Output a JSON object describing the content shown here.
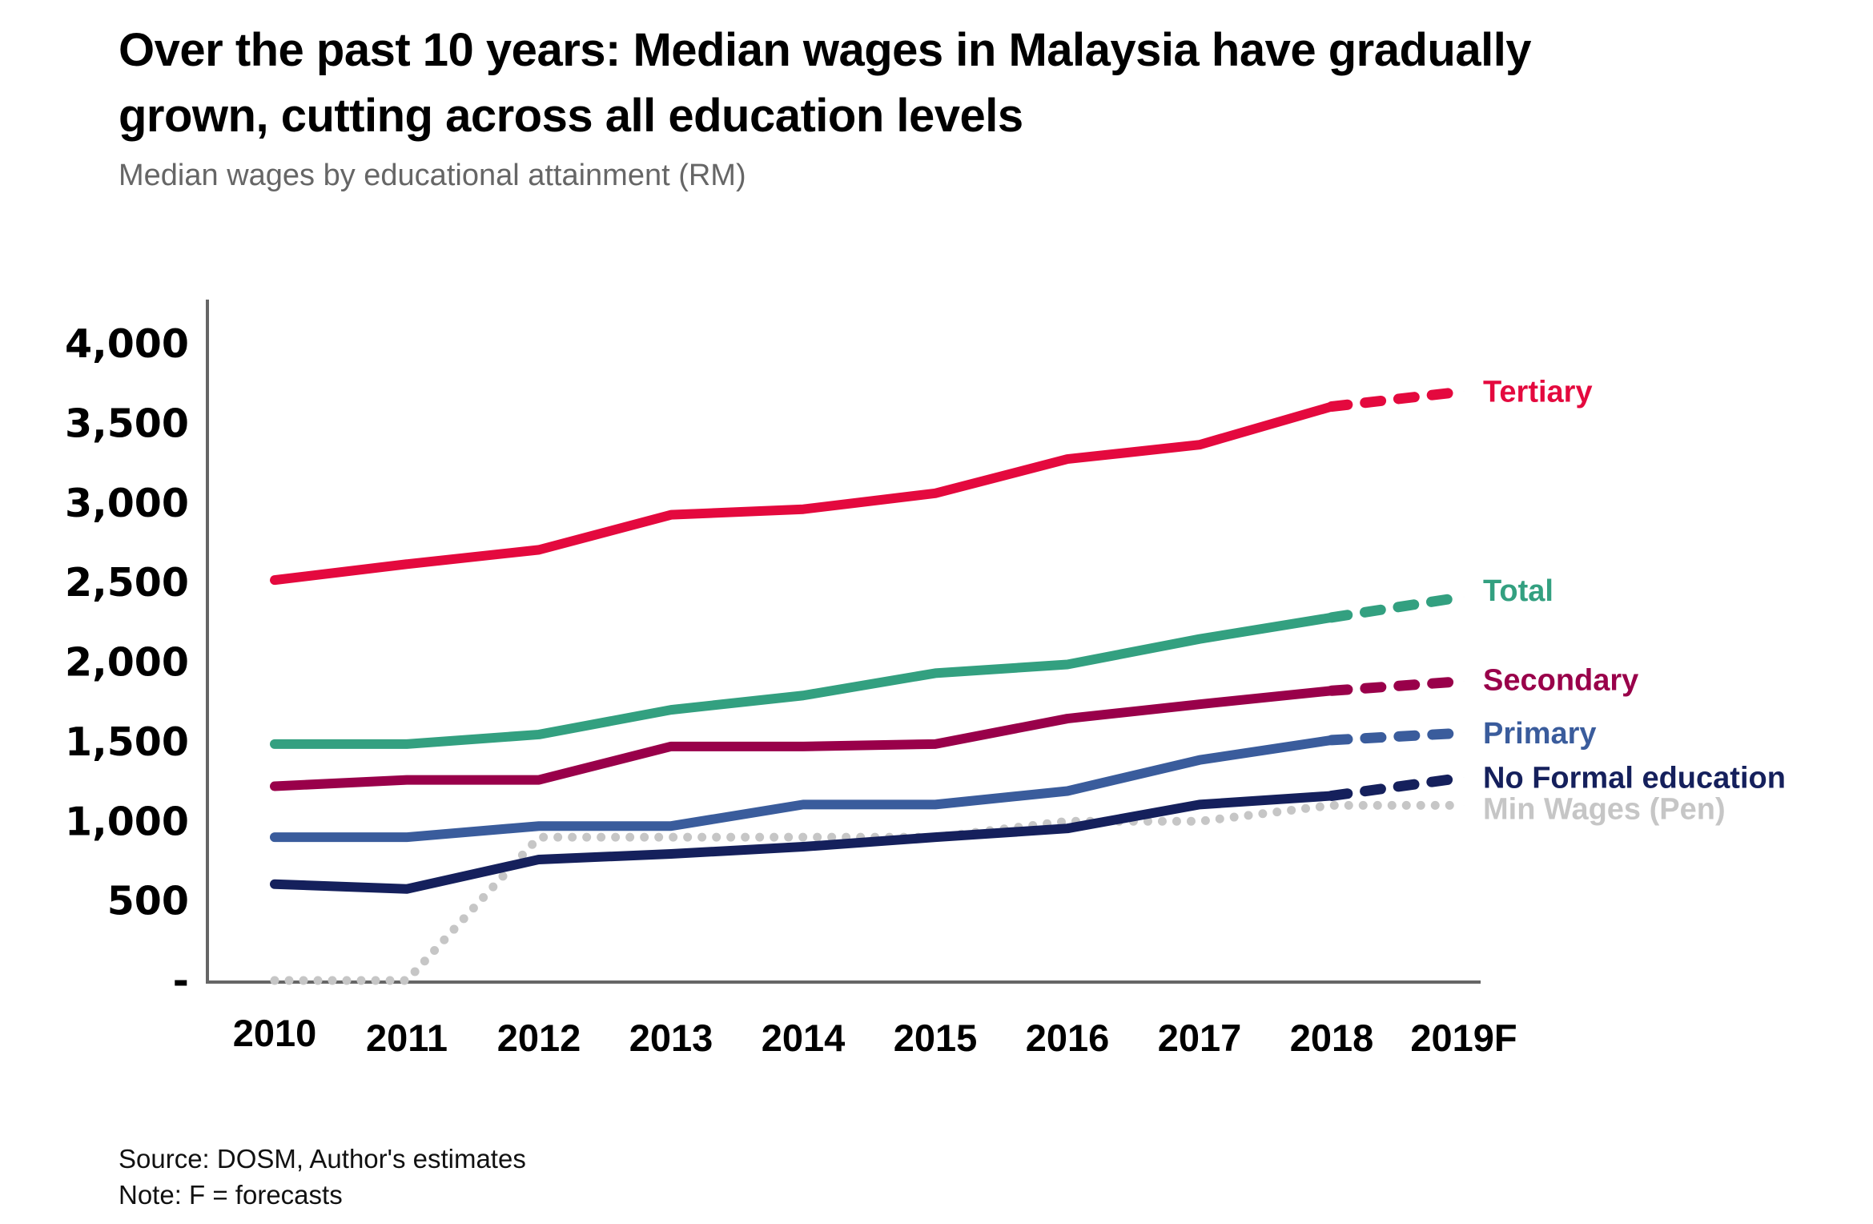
{
  "header": {
    "title_line1": "Over the past 10 years: Median wages in Malaysia have gradually",
    "title_line2": "grown, cutting across all education levels",
    "subtitle": "Median wages by educational attainment (RM)"
  },
  "footer": {
    "source": "Source: DOSM, Author's estimates",
    "note": "Note: F = forecasts"
  },
  "chart_data": {
    "type": "line",
    "title": "Over the past 10 years: Median wages in Malaysia have gradually grown, cutting across all education levels",
    "subtitle": "Median wages by educational attainment (RM)",
    "xlabel": "",
    "ylabel": "",
    "x": [
      "2010",
      "2011",
      "2012",
      "2013",
      "2014",
      "2015",
      "2016",
      "2017",
      "2018",
      "2019F"
    ],
    "ylim": [
      0,
      4000
    ],
    "yticks": [
      0,
      500,
      1000,
      1500,
      2000,
      2500,
      3000,
      3500,
      4000
    ],
    "ytick_labels": [
      "-",
      "500",
      "1,000",
      "1,500",
      "2,000",
      "2,500",
      "3,000",
      "3,500",
      "4,000"
    ],
    "grid": false,
    "legend": "direct labels at right end of lines",
    "forecast_from_index": 8,
    "series": [
      {
        "name": "Tertiary",
        "color": "#E4093E",
        "style": "solid-then-dashed",
        "values": [
          2515,
          2615,
          2705,
          2925,
          2960,
          3060,
          3275,
          3365,
          3605,
          3700
        ]
      },
      {
        "name": "Total",
        "color": "#33A080",
        "style": "solid-then-dashed",
        "values": [
          1485,
          1485,
          1545,
          1700,
          1790,
          1930,
          1985,
          2145,
          2280,
          2410
        ]
      },
      {
        "name": "Secondary",
        "color": "#99004A",
        "style": "solid-then-dashed",
        "values": [
          1220,
          1260,
          1260,
          1470,
          1470,
          1485,
          1645,
          1735,
          1820,
          1880
        ]
      },
      {
        "name": "Primary",
        "color": "#3A5C9C",
        "style": "solid-then-dashed",
        "values": [
          900,
          900,
          970,
          970,
          1105,
          1105,
          1190,
          1385,
          1510,
          1555
        ]
      },
      {
        "name": "No Formal education",
        "color": "#15205C",
        "style": "solid-then-dashed",
        "values": [
          605,
          575,
          760,
          795,
          840,
          900,
          955,
          1105,
          1160,
          1275
        ]
      },
      {
        "name": "Min Wages (Pen)",
        "color": "#C6C6C6",
        "style": "dotted",
        "values": [
          0,
          0,
          900,
          900,
          900,
          900,
          1000,
          1000,
          1100,
          1100
        ]
      }
    ]
  }
}
